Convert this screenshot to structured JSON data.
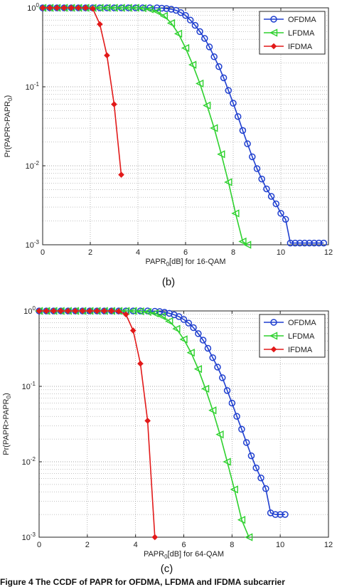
{
  "caption": "Figure 4 The CCDF of PAPR for OFDMA, LFDMA and IFDMA subcarrier",
  "colors": {
    "OFDMA": "#1f3fcf",
    "LFDMA": "#2ed12e",
    "IFDMA": "#e21a1a",
    "grid": "#888888"
  },
  "chart_data": [
    {
      "type": "line",
      "panel_label": "(b)",
      "xlabel_parts": [
        "PAPR",
        "0",
        "[dB] for 16-QAM"
      ],
      "ylabel_parts": [
        "Pr(PAPR>PAPR",
        "0",
        ")"
      ],
      "xlim": [
        0,
        12
      ],
      "ylim": [
        0.001,
        1
      ],
      "yscale": "log",
      "xticks": [
        "0",
        "2",
        "4",
        "6",
        "8",
        "10",
        "12"
      ],
      "yticks": [
        {
          "base": "10",
          "exp": "0"
        },
        {
          "base": "10",
          "exp": "-1"
        },
        {
          "base": "10",
          "exp": "-2"
        },
        {
          "base": "10",
          "exp": "-3"
        }
      ],
      "grid": true,
      "legend_position": "top-right",
      "series": [
        {
          "name": "OFDMA",
          "marker": "circle",
          "x": [
            0.0,
            0.3,
            0.6,
            0.9,
            1.2,
            1.5,
            1.8,
            2.1,
            2.4,
            2.7,
            3.0,
            3.3,
            3.6,
            3.9,
            4.2,
            4.5,
            4.8,
            5.0,
            5.2,
            5.4,
            5.6,
            5.8,
            6.0,
            6.2,
            6.4,
            6.6,
            6.8,
            7.0,
            7.2,
            7.4,
            7.6,
            7.8,
            8.0,
            8.2,
            8.4,
            8.6,
            8.8,
            9.0,
            9.2,
            9.4,
            9.6,
            9.8,
            10.0,
            10.2,
            10.4,
            10.6,
            10.8,
            11.0,
            11.2,
            11.4,
            11.6,
            11.8
          ],
          "y": [
            1,
            1,
            1,
            1,
            1,
            1,
            1,
            1,
            1,
            1,
            1,
            1,
            1,
            1,
            1,
            1,
            1,
            0.99,
            0.98,
            0.96,
            0.93,
            0.87,
            0.8,
            0.7,
            0.6,
            0.5,
            0.41,
            0.32,
            0.24,
            0.18,
            0.13,
            0.09,
            0.062,
            0.042,
            0.028,
            0.019,
            0.013,
            0.0092,
            0.0068,
            0.0051,
            0.0041,
            0.0033,
            0.0025,
            0.0021,
            0.00105,
            0.00105,
            0.00105,
            0.00105,
            0.00105,
            0.00105,
            0.00105,
            0.00105
          ]
        },
        {
          "name": "LFDMA",
          "marker": "triangle-left",
          "x": [
            0.0,
            0.3,
            0.6,
            0.9,
            1.2,
            1.5,
            1.8,
            2.1,
            2.4,
            2.7,
            3.0,
            3.3,
            3.6,
            3.9,
            4.2,
            4.5,
            4.8,
            5.1,
            5.4,
            5.7,
            6.0,
            6.3,
            6.6,
            6.9,
            7.2,
            7.5,
            7.8,
            8.1,
            8.4,
            8.6
          ],
          "y": [
            1,
            1,
            1,
            1,
            1,
            1,
            1,
            1,
            1,
            1,
            1,
            1,
            1,
            1,
            0.99,
            0.96,
            0.9,
            0.79,
            0.64,
            0.47,
            0.31,
            0.19,
            0.11,
            0.058,
            0.03,
            0.014,
            0.0062,
            0.0025,
            0.0011,
            0.001
          ]
        },
        {
          "name": "IFDMA",
          "marker": "diamond",
          "x": [
            0.0,
            0.3,
            0.6,
            0.9,
            1.2,
            1.5,
            1.8,
            2.1,
            2.4,
            2.7,
            3.0,
            3.3
          ],
          "y": [
            1,
            1,
            1,
            1,
            1,
            1,
            1,
            0.98,
            0.62,
            0.25,
            0.06,
            0.0077
          ]
        }
      ]
    },
    {
      "type": "line",
      "panel_label": "(c)",
      "xlabel_parts": [
        "PAPR",
        "0",
        "[dB] for 64-QAM"
      ],
      "ylabel_parts": [
        "Pr(PAPR>PAPR",
        "0",
        ")"
      ],
      "xlim": [
        0,
        12
      ],
      "ylim": [
        0.001,
        1
      ],
      "yscale": "log",
      "xticks": [
        "0",
        "2",
        "4",
        "6",
        "8",
        "10",
        "12"
      ],
      "yticks": [
        {
          "base": "10",
          "exp": "0"
        },
        {
          "base": "10",
          "exp": "-1"
        },
        {
          "base": "10",
          "exp": "-2"
        },
        {
          "base": "10",
          "exp": "-3"
        }
      ],
      "grid": true,
      "legend_position": "top-right",
      "series": [
        {
          "name": "OFDMA",
          "marker": "circle",
          "x": [
            0.0,
            0.3,
            0.6,
            0.9,
            1.2,
            1.5,
            1.8,
            2.1,
            2.4,
            2.7,
            3.0,
            3.3,
            3.6,
            3.9,
            4.2,
            4.5,
            4.8,
            5.0,
            5.2,
            5.4,
            5.6,
            5.8,
            6.0,
            6.2,
            6.4,
            6.6,
            6.8,
            7.0,
            7.2,
            7.4,
            7.6,
            7.8,
            8.0,
            8.2,
            8.4,
            8.6,
            8.8,
            9.0,
            9.2,
            9.4,
            9.6,
            9.8,
            10.0,
            10.2
          ],
          "y": [
            1,
            1,
            1,
            1,
            1,
            1,
            1,
            1,
            1,
            1,
            1,
            1,
            1,
            1,
            1,
            1,
            0.99,
            0.98,
            0.96,
            0.93,
            0.89,
            0.84,
            0.77,
            0.69,
            0.6,
            0.5,
            0.41,
            0.32,
            0.24,
            0.18,
            0.13,
            0.088,
            0.06,
            0.04,
            0.027,
            0.018,
            0.012,
            0.0083,
            0.0061,
            0.0044,
            0.0021,
            0.002,
            0.002,
            0.002
          ]
        },
        {
          "name": "LFDMA",
          "marker": "triangle-left",
          "x": [
            0.0,
            0.3,
            0.6,
            0.9,
            1.2,
            1.5,
            1.8,
            2.1,
            2.4,
            2.7,
            3.0,
            3.3,
            3.6,
            3.9,
            4.2,
            4.5,
            4.8,
            5.1,
            5.4,
            5.7,
            6.0,
            6.3,
            6.6,
            6.9,
            7.2,
            7.5,
            7.8,
            8.1,
            8.4,
            8.7
          ],
          "y": [
            1,
            1,
            1,
            1,
            1,
            1,
            1,
            1,
            1,
            1,
            1,
            1,
            1,
            1,
            0.99,
            0.97,
            0.93,
            0.85,
            0.73,
            0.58,
            0.42,
            0.28,
            0.17,
            0.093,
            0.048,
            0.023,
            0.01,
            0.0043,
            0.0017,
            0.001
          ]
        },
        {
          "name": "IFDMA",
          "marker": "diamond",
          "x": [
            0.0,
            0.3,
            0.6,
            0.9,
            1.2,
            1.5,
            1.8,
            2.1,
            2.4,
            2.7,
            3.0,
            3.3,
            3.6,
            3.9,
            4.2,
            4.5,
            4.8
          ],
          "y": [
            1,
            1,
            1,
            1,
            1,
            1,
            1,
            1,
            1,
            1,
            1,
            0.99,
            0.9,
            0.55,
            0.2,
            0.035,
            0.001
          ]
        }
      ]
    }
  ]
}
